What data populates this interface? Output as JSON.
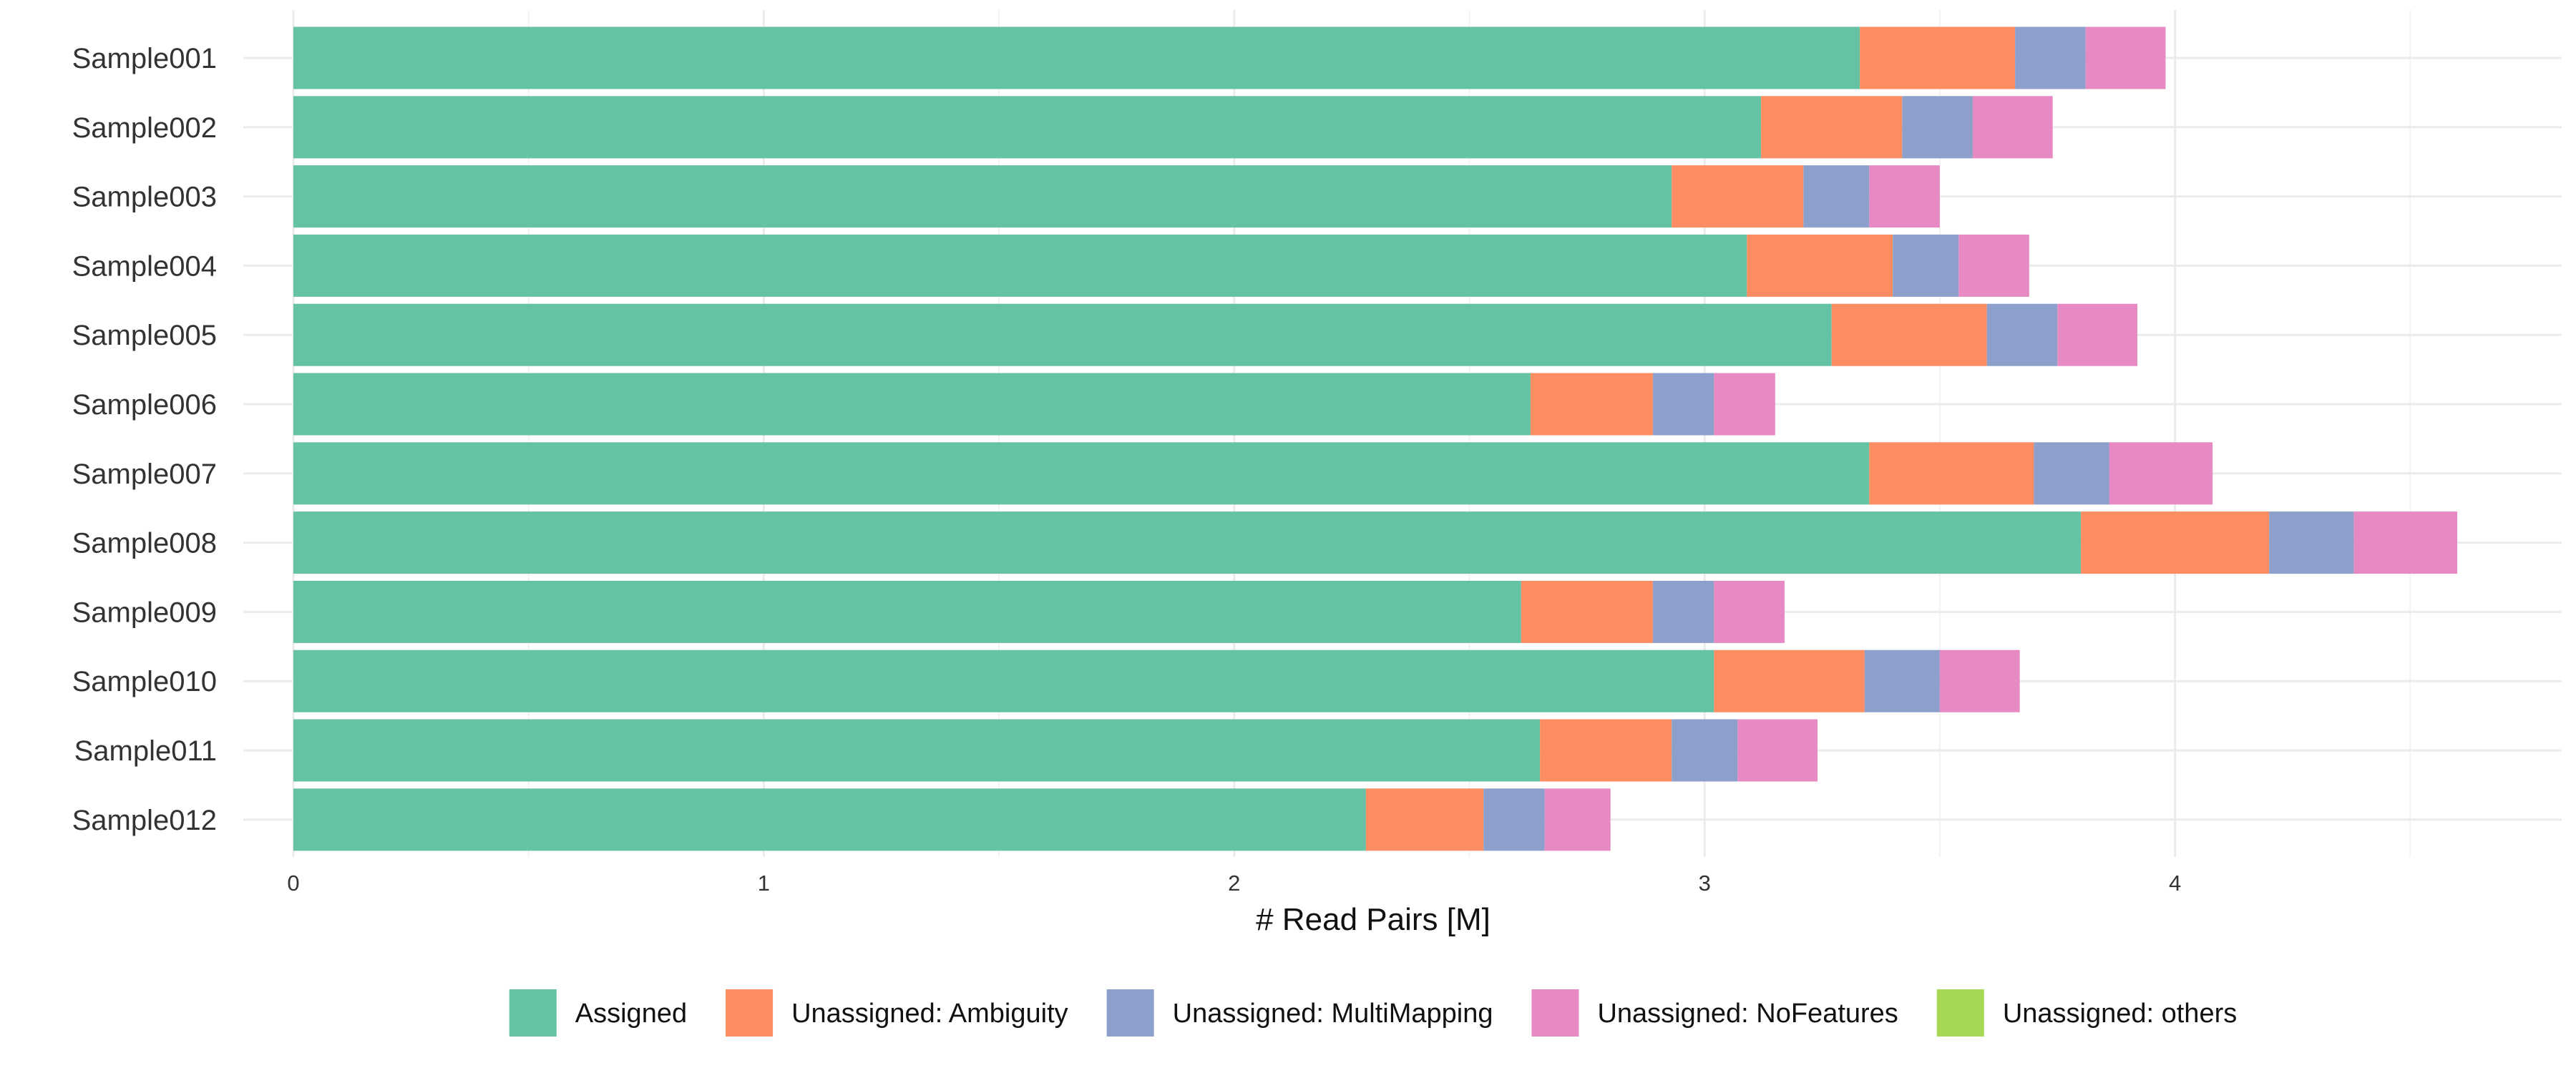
{
  "chart_data": {
    "type": "bar",
    "orientation": "horizontal",
    "stacked": true,
    "title": "",
    "xlabel": "# Read Pairs [M]",
    "ylabel": "",
    "xlim": [
      0,
      4.78
    ],
    "x_ticks": [
      0,
      1,
      2,
      3,
      4
    ],
    "x_tick_labels": [
      "0",
      "1",
      "2",
      "3",
      "4"
    ],
    "grid": true,
    "legend_position": "bottom",
    "categories": [
      "Sample001",
      "Sample002",
      "Sample003",
      "Sample004",
      "Sample005",
      "Sample006",
      "Sample007",
      "Sample008",
      "Sample009",
      "Sample010",
      "Sample011",
      "Sample012"
    ],
    "series": [
      {
        "name": "Assigned",
        "color": "#66c2a5",
        "values": [
          3.33,
          3.12,
          2.93,
          3.09,
          3.27,
          2.63,
          3.35,
          3.8,
          2.61,
          3.02,
          2.65,
          2.28
        ]
      },
      {
        "name": "Unassigned: Ambiguity",
        "color": "#fc8d62",
        "values": [
          0.33,
          0.3,
          0.28,
          0.31,
          0.33,
          0.26,
          0.35,
          0.4,
          0.28,
          0.32,
          0.28,
          0.25
        ]
      },
      {
        "name": "Unassigned: MultiMapping",
        "color": "#8da0cb",
        "values": [
          0.15,
          0.15,
          0.14,
          0.14,
          0.15,
          0.13,
          0.16,
          0.18,
          0.13,
          0.16,
          0.14,
          0.13
        ]
      },
      {
        "name": "Unassigned: NoFeatures",
        "color": "#e78ac3",
        "values": [
          0.17,
          0.17,
          0.15,
          0.15,
          0.17,
          0.13,
          0.22,
          0.22,
          0.15,
          0.17,
          0.17,
          0.14
        ]
      },
      {
        "name": "Unassigned: others",
        "color": "#a6d854",
        "values": [
          0,
          0,
          0,
          0,
          0,
          0,
          0,
          0,
          0,
          0,
          0,
          0
        ]
      }
    ]
  }
}
